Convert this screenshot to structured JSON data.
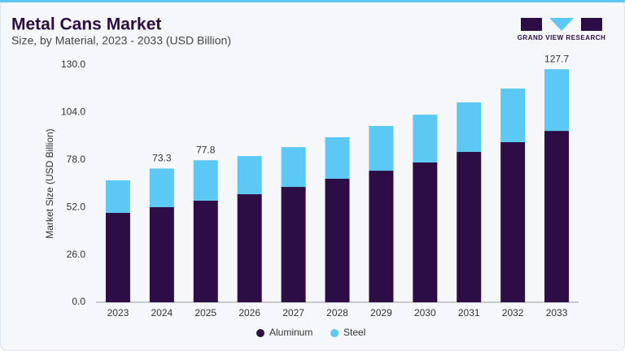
{
  "chart_data": {
    "type": "stacked_bar",
    "title": "Metal Cans Market",
    "subtitle": "Size, by Material, 2023 - 2033 (USD Billion)",
    "brand": "GRAND VIEW RESEARCH",
    "y_label": "Market Size (USD Billion)",
    "categories": [
      "2023",
      "2024",
      "2025",
      "2026",
      "2027",
      "2028",
      "2029",
      "2030",
      "2031",
      "2032",
      "2033"
    ],
    "series": [
      {
        "name": "Aluminum",
        "color": "#2d0d45",
        "values": [
          49.0,
          52.1,
          55.7,
          59.2,
          63.2,
          67.7,
          72.1,
          76.6,
          82.4,
          87.7,
          93.9
        ]
      },
      {
        "name": "Steel",
        "color": "#5bc9f4",
        "values": [
          17.8,
          21.2,
          22.1,
          20.9,
          21.8,
          22.7,
          24.5,
          26.2,
          27.1,
          29.4,
          33.8
        ]
      }
    ],
    "totals": [
      null,
      73.3,
      77.8,
      null,
      null,
      null,
      null,
      null,
      null,
      null,
      127.7
    ],
    "ylim": [
      0,
      130
    ],
    "yticks": [
      {
        "value": 0,
        "label": "0.0"
      },
      {
        "value": 26,
        "label": "26.0"
      },
      {
        "value": 52,
        "label": "52.0"
      },
      {
        "value": 78,
        "label": "78.0"
      },
      {
        "value": 104,
        "label": "104.0"
      },
      {
        "value": 130,
        "label": "130.0"
      }
    ],
    "grid": false
  }
}
